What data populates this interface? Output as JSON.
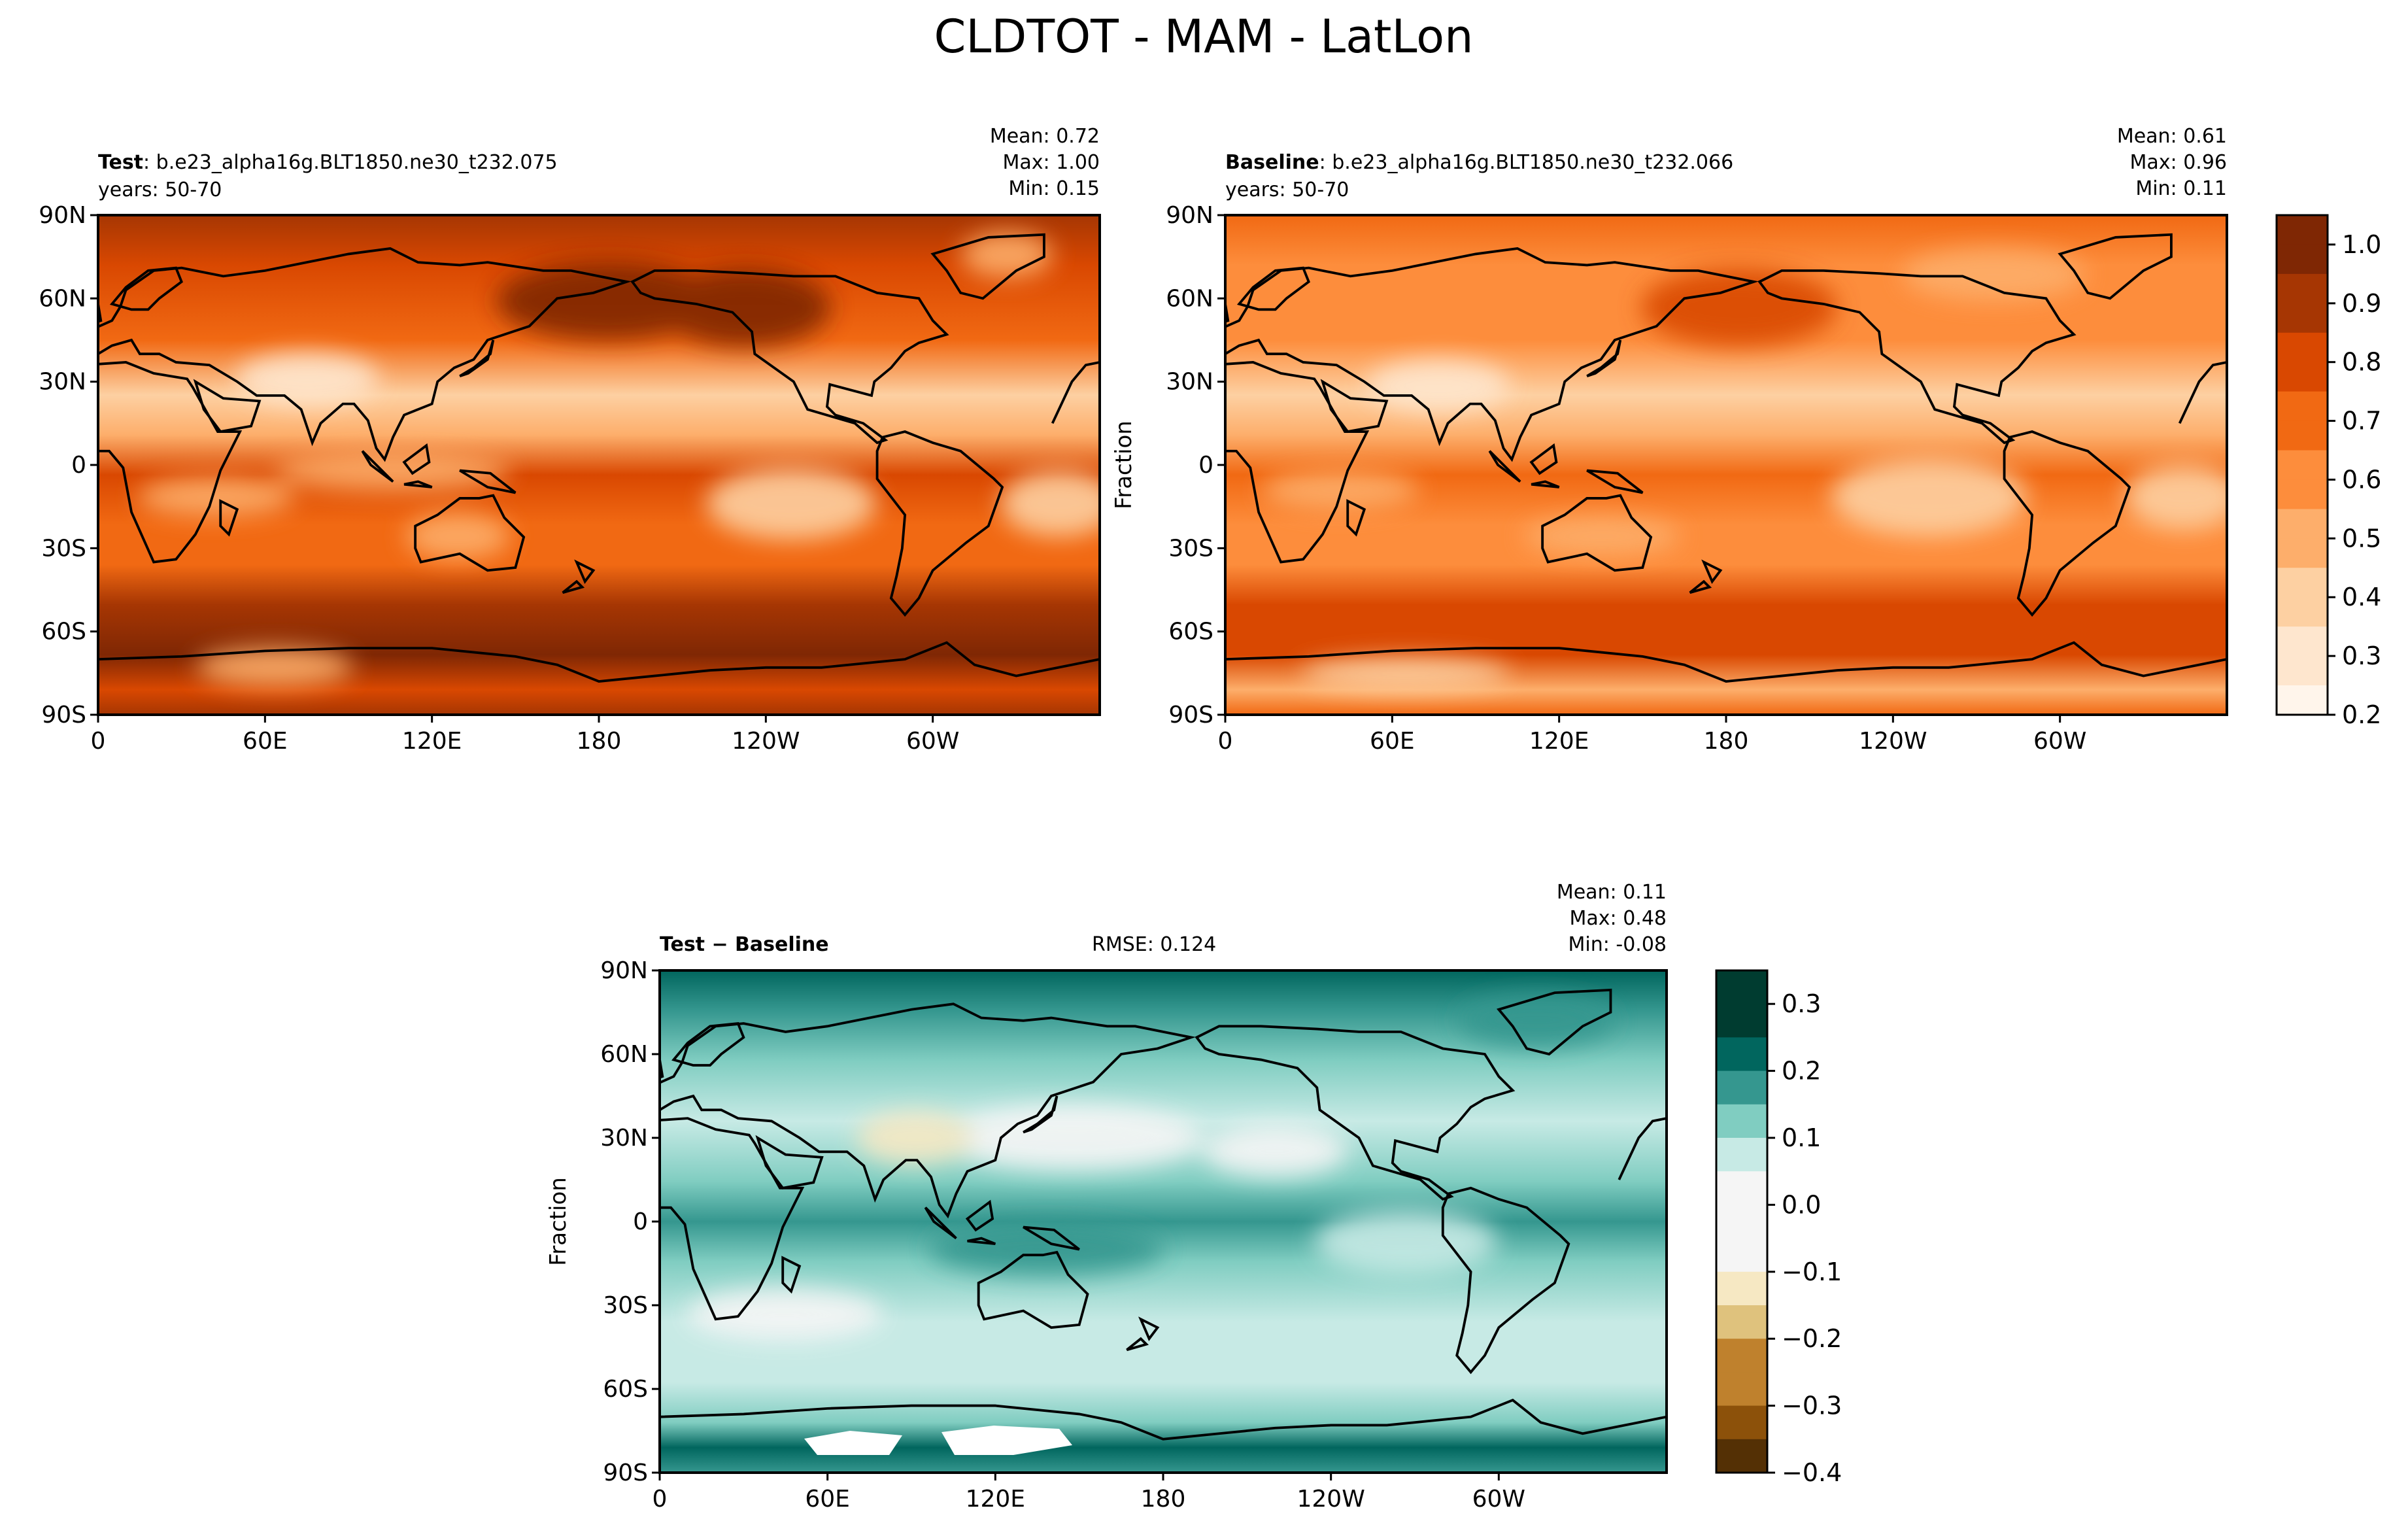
{
  "figure_title": "CLDTOT - MAM - LatLon",
  "colors": {
    "orange_ramp": [
      "#fff5eb",
      "#fee6ce",
      "#fdd0a2",
      "#fdae6b",
      "#fd8d3c",
      "#f16913",
      "#d94801",
      "#a63603",
      "#7f2704"
    ],
    "diff_ramp_pos": [
      "#f5f5f5",
      "#c7eae5",
      "#80cdc1",
      "#35978f",
      "#01665e",
      "#003c30"
    ],
    "diff_ramp_neg": [
      "#f5f5f5",
      "#f6e8c3",
      "#dfc27d",
      "#bf812d",
      "#8c510a",
      "#543005"
    ],
    "coastline": "#000000"
  },
  "panels": {
    "test": {
      "label_bold": "Test",
      "label_rest": ": b.e23_alpha16g.BLT1850.ne30_t232.075",
      "years": "years: 50-70",
      "stats": {
        "mean": "Mean:  0.72",
        "max": "Max:  1.00",
        "min": "Min:  0.15"
      }
    },
    "baseline": {
      "label_bold": "Baseline",
      "label_rest": ": b.e23_alpha16g.BLT1850.ne30_t232.066",
      "years": "years: 50-70",
      "stats": {
        "mean": "Mean:  0.61",
        "max": "Max:  0.96",
        "min": "Min:  0.11"
      }
    },
    "diff": {
      "label": "Test − Baseline",
      "rmse": "RMSE: 0.124",
      "stats": {
        "mean": "Mean:  0.11",
        "max": "Max:  0.48",
        "min": "Min: -0.08"
      }
    }
  },
  "axes": {
    "lat_ticks": [
      "90N",
      "60N",
      "30N",
      "0",
      "30S",
      "60S",
      "90S"
    ],
    "lon_ticks": [
      "0",
      "60E",
      "120E",
      "180",
      "120W",
      "60W"
    ],
    "colorbar_label": "Fraction"
  },
  "colorbars": {
    "main": {
      "ticks": [
        "1.0",
        "0.9",
        "0.8",
        "0.7",
        "0.6",
        "0.5",
        "0.4",
        "0.3",
        "0.2"
      ]
    },
    "diff": {
      "ticks": [
        "0.3",
        "0.2",
        "0.1",
        "0.0",
        "−0.1",
        "−0.2",
        "−0.3",
        "−0.4"
      ]
    }
  },
  "chart_data": [
    {
      "type": "heatmap",
      "title": "Test: b.e23_alpha16g.BLT1850.ne30_t232.075",
      "variable": "CLDTOT",
      "season": "MAM",
      "xlabel": "",
      "ylabel": "",
      "x_ticks": [
        "0",
        "60E",
        "120E",
        "180",
        "120W",
        "60W"
      ],
      "y_ticks": [
        "90N",
        "60N",
        "30N",
        "0",
        "30S",
        "60S",
        "90S"
      ],
      "colorbar_range": [
        0.2,
        1.0
      ],
      "stats": {
        "mean": 0.72,
        "max": 1.0,
        "min": 0.15
      }
    },
    {
      "type": "heatmap",
      "title": "Baseline: b.e23_alpha16g.BLT1850.ne30_t232.066",
      "variable": "CLDTOT",
      "season": "MAM",
      "xlabel": "",
      "ylabel": "Fraction",
      "x_ticks": [
        "0",
        "60E",
        "120E",
        "180",
        "120W",
        "60W"
      ],
      "y_ticks": [
        "90N",
        "60N",
        "30N",
        "0",
        "30S",
        "60S",
        "90S"
      ],
      "colorbar_range": [
        0.2,
        1.0
      ],
      "stats": {
        "mean": 0.61,
        "max": 0.96,
        "min": 0.11
      }
    },
    {
      "type": "heatmap",
      "title": "Test − Baseline",
      "variable": "CLDTOT",
      "season": "MAM",
      "xlabel": "",
      "ylabel": "Fraction",
      "x_ticks": [
        "0",
        "60E",
        "120E",
        "180",
        "120W",
        "60W"
      ],
      "y_ticks": [
        "90N",
        "60N",
        "30N",
        "0",
        "30S",
        "60S",
        "90S"
      ],
      "colorbar_range": [
        -0.4,
        0.35
      ],
      "rmse": 0.124,
      "stats": {
        "mean": 0.11,
        "max": 0.48,
        "min": -0.08
      }
    }
  ]
}
